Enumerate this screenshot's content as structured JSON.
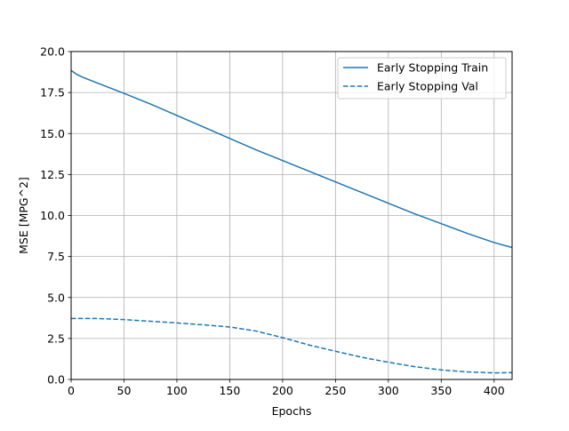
{
  "chart_data": {
    "type": "line",
    "title": "",
    "xlabel": "Epochs",
    "ylabel": "MSE [MPG^2]",
    "xlim": [
      0,
      417
    ],
    "ylim": [
      0,
      20
    ],
    "xticks": [
      0,
      50,
      100,
      150,
      200,
      250,
      300,
      350,
      400
    ],
    "yticks": [
      0.0,
      2.5,
      5.0,
      7.5,
      10.0,
      12.5,
      15.0,
      17.5,
      20.0
    ],
    "xtick_labels": [
      "0",
      "50",
      "100",
      "150",
      "200",
      "250",
      "300",
      "350",
      "400"
    ],
    "ytick_labels": [
      "0.0",
      "2.5",
      "5.0",
      "7.5",
      "10.0",
      "12.5",
      "15.0",
      "17.5",
      "20.0"
    ],
    "grid": true,
    "legend_position": "top-right",
    "series": [
      {
        "name": "Early Stopping Train",
        "color": "#1f77b4",
        "dash": "solid",
        "x": [
          0,
          5,
          10,
          20,
          30,
          40,
          50,
          75,
          100,
          125,
          150,
          175,
          200,
          225,
          250,
          275,
          300,
          325,
          350,
          375,
          400,
          417
        ],
        "y": [
          18.85,
          18.62,
          18.46,
          18.2,
          17.95,
          17.7,
          17.45,
          16.8,
          16.1,
          15.4,
          14.7,
          14.0,
          13.35,
          12.7,
          12.05,
          11.4,
          10.75,
          10.1,
          9.5,
          8.9,
          8.35,
          8.05
        ]
      },
      {
        "name": "Early Stopping Val",
        "color": "#1f77b4",
        "dash": "dashed",
        "x": [
          0,
          25,
          50,
          75,
          100,
          125,
          150,
          175,
          200,
          225,
          250,
          275,
          300,
          325,
          350,
          375,
          400,
          417
        ],
        "y": [
          3.72,
          3.72,
          3.65,
          3.55,
          3.45,
          3.33,
          3.2,
          2.95,
          2.55,
          2.1,
          1.72,
          1.35,
          1.05,
          0.78,
          0.58,
          0.46,
          0.4,
          0.42
        ]
      }
    ]
  }
}
